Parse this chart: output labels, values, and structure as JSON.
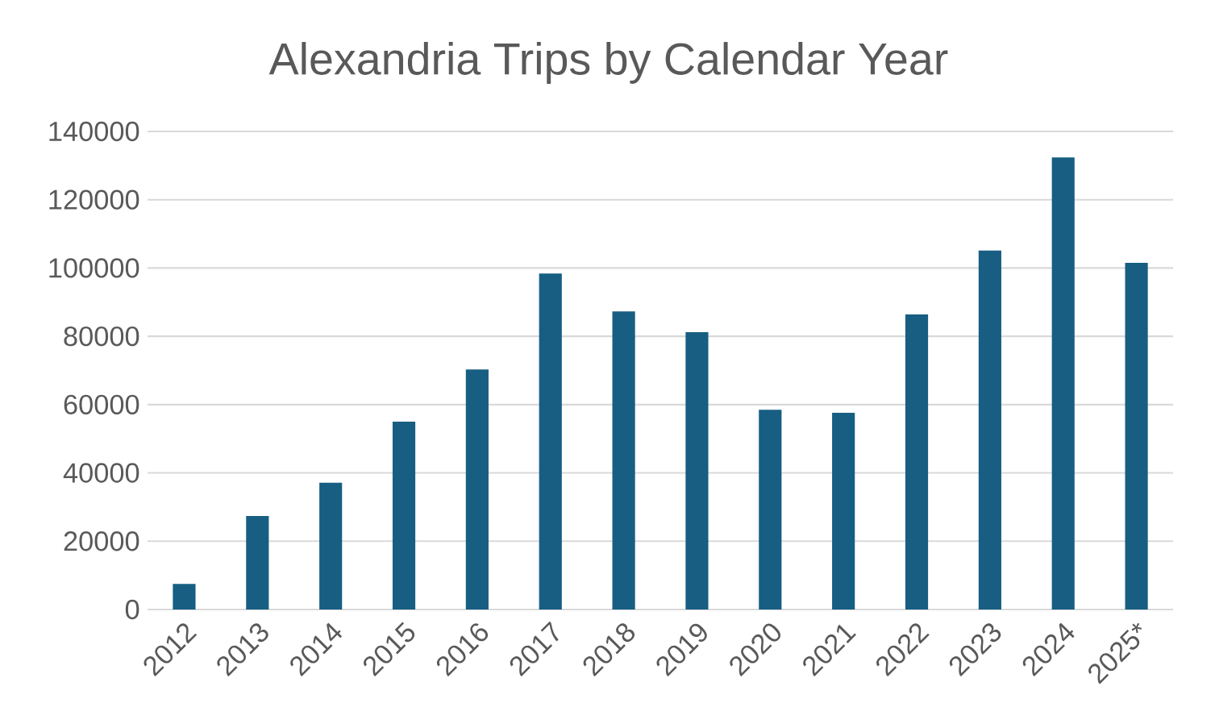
{
  "chart_data": {
    "type": "bar",
    "title": "Alexandria Trips by Calendar Year",
    "categories": [
      "2012",
      "2013",
      "2014",
      "2015",
      "2016",
      "2017",
      "2018",
      "2019",
      "2020",
      "2021",
      "2022",
      "2023",
      "2024",
      "2025*"
    ],
    "values": [
      7500,
      27400,
      37100,
      55000,
      70300,
      98400,
      87300,
      81200,
      58500,
      57600,
      86400,
      105100,
      132400,
      101500
    ],
    "color": "#175e82",
    "ylim": [
      0,
      140000
    ],
    "yticks": [
      0,
      20000,
      40000,
      60000,
      80000,
      100000,
      120000,
      140000
    ],
    "grid": "y"
  }
}
